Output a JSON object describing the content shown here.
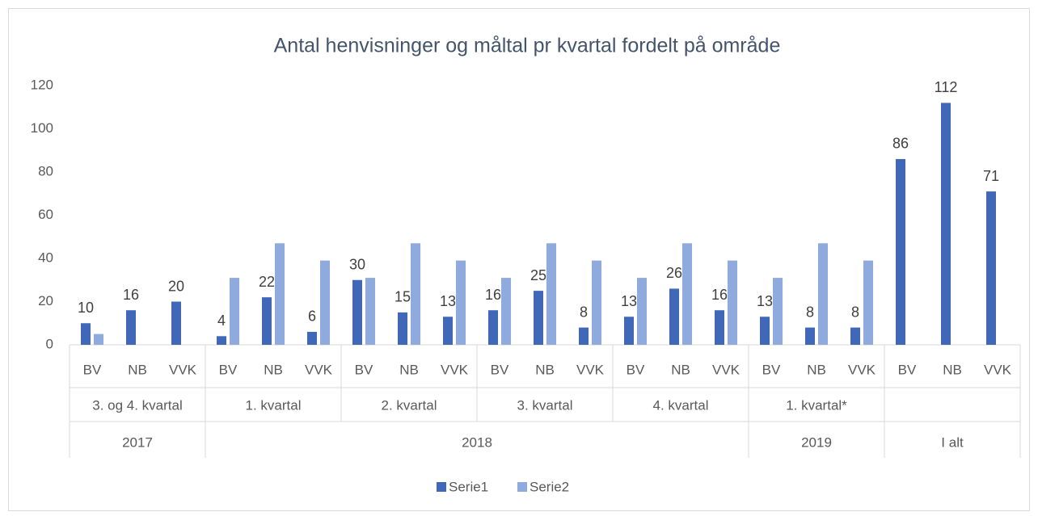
{
  "chart_data": {
    "type": "bar",
    "title": "Antal henvisninger og måltal pr kvartal fordelt på område",
    "categories": [
      "BV",
      "NB",
      "VVK",
      "BV",
      "NB",
      "VVK",
      "BV",
      "NB",
      "VVK",
      "BV",
      "NB",
      "VVK",
      "BV",
      "NB",
      "VVK",
      "BV",
      "NB",
      "VVK",
      "BV",
      "NB",
      "VVK"
    ],
    "category_groups": [
      "3. og 4. kvartal",
      "1. kvartal",
      "2. kvartal",
      "3. kvartal",
      "4. kvartal",
      "1. kvartal*",
      null
    ],
    "category_supergroups": [
      {
        "label": "2017",
        "span": 3
      },
      {
        "label": "2018",
        "span": 12
      },
      {
        "label": "2019",
        "span": 3
      },
      {
        "label": "I alt",
        "span": 3
      }
    ],
    "series": [
      {
        "name": "Serie1",
        "color": "#4167b8",
        "data_labels": true,
        "values": [
          10,
          16,
          20,
          4,
          22,
          6,
          30,
          15,
          13,
          16,
          25,
          8,
          13,
          26,
          16,
          13,
          8,
          8,
          86,
          112,
          71
        ]
      },
      {
        "name": "Serie2",
        "color": "#8faadc",
        "values": [
          5,
          null,
          null,
          31,
          47,
          39,
          31,
          47,
          39,
          31,
          47,
          39,
          31,
          47,
          39,
          31,
          47,
          39,
          null,
          null,
          null
        ]
      }
    ],
    "ylim": [
      0,
      120
    ],
    "yticks": [
      0,
      20,
      40,
      60,
      80,
      100,
      120
    ],
    "grid": false,
    "legend": "bottom"
  }
}
